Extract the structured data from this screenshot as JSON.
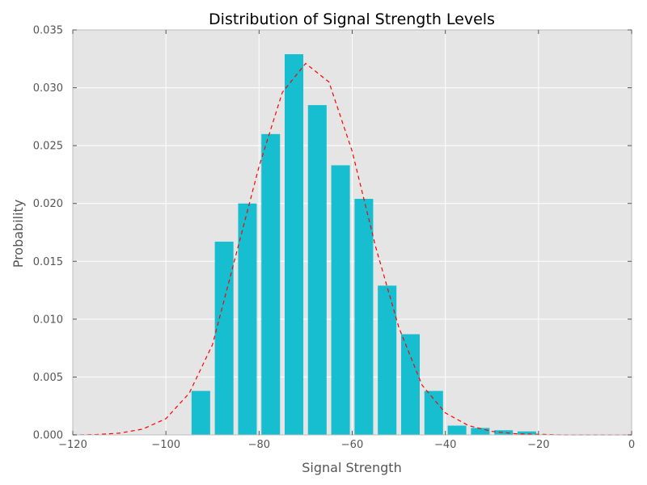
{
  "chart_data": {
    "type": "bar",
    "title": "Distribution of Signal Strength Levels",
    "xlabel": "Signal Strength",
    "ylabel": "Probability",
    "xlim": [
      -120,
      0
    ],
    "ylim": [
      0,
      0.035
    ],
    "xticks": [
      -120,
      -100,
      -80,
      -60,
      -40,
      -20,
      0
    ],
    "xtick_labels": [
      "−120",
      "−100",
      "−80",
      "−60",
      "−40",
      "−20",
      "0"
    ],
    "yticks": [
      0,
      0.005,
      0.01,
      0.015,
      0.02,
      0.025,
      0.03,
      0.035
    ],
    "ytick_labels": [
      "0.000",
      "0.005",
      "0.010",
      "0.015",
      "0.020",
      "0.025",
      "0.030",
      "0.035"
    ],
    "grid": true,
    "bar_width": 4,
    "series": [
      {
        "kind": "bar",
        "color": "#17becf",
        "x": [
          -92.5,
          -87.5,
          -82.5,
          -77.5,
          -72.5,
          -67.5,
          -62.5,
          -57.5,
          -52.5,
          -47.5,
          -42.5,
          -37.5,
          -32.5,
          -27.5,
          -22.5
        ],
        "values": [
          0.0038,
          0.0167,
          0.02,
          0.026,
          0.0329,
          0.0285,
          0.0233,
          0.0204,
          0.0129,
          0.0087,
          0.0038,
          0.0008,
          0.0006,
          0.0004,
          0.0003
        ]
      },
      {
        "kind": "line",
        "style": "dashed",
        "color": "#ff0000",
        "x": [
          -120,
          -115,
          -110,
          -105,
          -100,
          -95,
          -90,
          -85,
          -80,
          -75,
          -70,
          -65,
          -60,
          -55,
          -50,
          -45,
          -40,
          -35,
          -30,
          -25,
          -20,
          -15,
          -10,
          -5,
          0
        ],
        "values": [
          0.0,
          3e-05,
          0.00015,
          0.0005,
          0.0014,
          0.0036,
          0.0078,
          0.0155,
          0.0232,
          0.0296,
          0.0321,
          0.0305,
          0.0245,
          0.0163,
          0.0093,
          0.0043,
          0.0019,
          0.0008,
          0.0003,
          0.0001,
          5e-05,
          0.0,
          0.0,
          0.0,
          0.0
        ]
      }
    ]
  },
  "colors": {
    "plot_background": "#e5e5e5",
    "grid": "#ffffff",
    "spine": "#bcbcbc",
    "tick_text": "#555555"
  }
}
